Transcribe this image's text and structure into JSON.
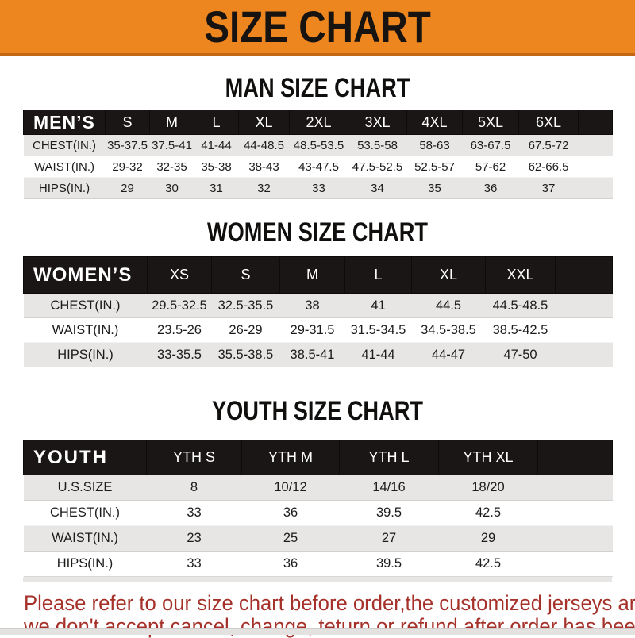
{
  "banner": {
    "title": "SIZE CHART"
  },
  "sections": [
    {
      "title": "MAN SIZE CHART",
      "header": {
        "label": "MEN’S",
        "columns": [
          "S",
          "M",
          "L",
          "XL",
          "2XL",
          "3XL",
          "4XL",
          "5XL",
          "6XL"
        ]
      },
      "rows": [
        {
          "label": "CHEST(IN.)",
          "values": [
            "35-37.5",
            "37.5-41",
            "41-44",
            "44-48.5",
            "48.5-53.5",
            "53.5-58",
            "58-63",
            "63-67.5",
            "67.5-72"
          ]
        },
        {
          "label": "WAIST(IN.)",
          "values": [
            "29-32",
            "32-35",
            "35-38",
            "38-43",
            "43-47.5",
            "47.5-52.5",
            "52.5-57",
            "57-62",
            "62-66.5"
          ]
        },
        {
          "label": "HIPS(IN.)",
          "values": [
            "29",
            "30",
            "31",
            "32",
            "33",
            "34",
            "35",
            "36",
            "37"
          ]
        }
      ]
    },
    {
      "title": "WOMEN SIZE CHART",
      "header": {
        "label": "WOMEN’S",
        "columns": [
          "XS",
          "S",
          "M",
          "L",
          "XL",
          "XXL"
        ]
      },
      "rows": [
        {
          "label": "CHEST(IN.)",
          "values": [
            "29.5-32.5",
            "32.5-35.5",
            "38",
            "41",
            "44.5",
            "44.5-48.5"
          ]
        },
        {
          "label": "WAIST(IN.)",
          "values": [
            "23.5-26",
            "26-29",
            "29-31.5",
            "31.5-34.5",
            "34.5-38.5",
            "38.5-42.5"
          ]
        },
        {
          "label": "HIPS(IN.)",
          "values": [
            "33-35.5",
            "35.5-38.5",
            "38.5-41",
            "41-44",
            "44-47",
            "47-50"
          ]
        }
      ]
    },
    {
      "title": "YOUTH SIZE CHART",
      "header": {
        "label": "YOUTH",
        "columns": [
          "YTH S",
          "YTH M",
          "YTH L",
          "YTH XL"
        ]
      },
      "rows": [
        {
          "label": "U.S.SIZE",
          "values": [
            "8",
            "10/12",
            "14/16",
            "18/20"
          ]
        },
        {
          "label": "CHEST(IN.)",
          "values": [
            "33",
            "36",
            "39.5",
            "42.5"
          ]
        },
        {
          "label": "WAIST(IN.)",
          "values": [
            "23",
            "25",
            "27",
            "29"
          ]
        },
        {
          "label": "HIPS(IN.)",
          "values": [
            "33",
            "36",
            "39.5",
            "42.5"
          ]
        }
      ]
    }
  ],
  "footer": {
    "line1": "Please refer to our size chart before order,the customized jerseys are special products,",
    "line2": "we don't accept cancel, change, teturn or refund after order has been placed!"
  },
  "colors": {
    "banner_orange": "#EE861F",
    "banner_border": "#C26812",
    "header_bar_black": "#191615",
    "row_gray": "#E7E6E4",
    "note_red": "#A5312A"
  }
}
